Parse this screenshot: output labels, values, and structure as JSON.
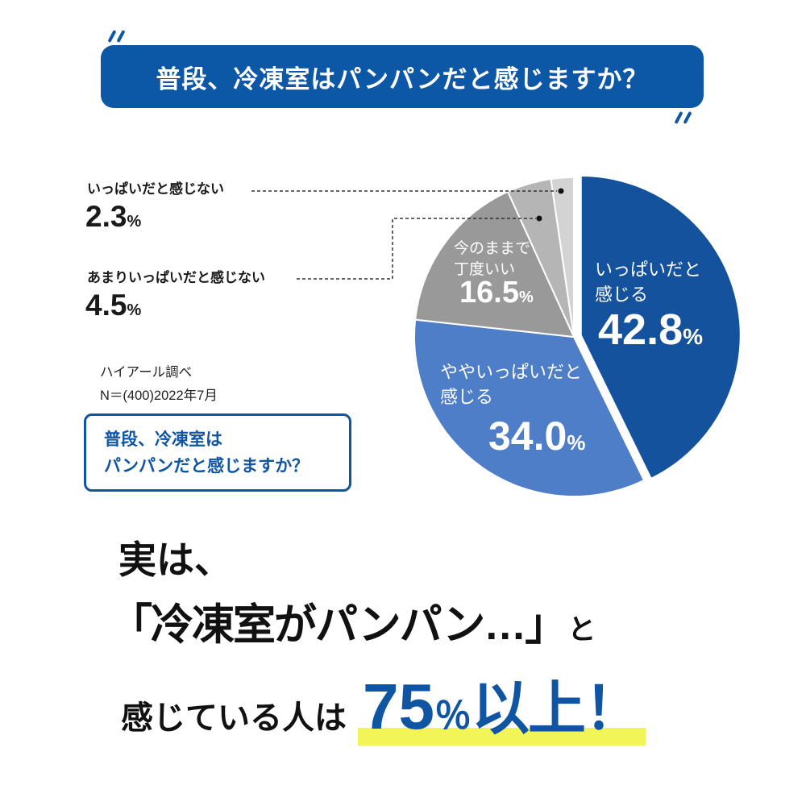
{
  "banner": {
    "title": "普段、冷凍室はパンパンだと感じますか？"
  },
  "chart_data": {
    "type": "pie",
    "title": "普段、冷凍室はパンパンだと感じますか？",
    "source_line1": "ハイアール調べ",
    "source_line2": "N＝(400)2022年7月",
    "direction": "clockwise",
    "start_angle_deg": -90,
    "slices": [
      {
        "label": "いっぱいだと感じる",
        "label_line1": "いっぱいだと",
        "label_line2": "感じる",
        "value": 42.8,
        "display": "42.8",
        "unit": "%",
        "color": "#14529e",
        "exploded": true
      },
      {
        "label": "ややいっぱいだと感じる",
        "label_line1": "ややいっぱいだと",
        "label_line2": "感じる",
        "value": 34.0,
        "display": "34.0",
        "unit": "%",
        "color": "#4e7ec8",
        "exploded": false
      },
      {
        "label": "今のままで丁度いい",
        "label_line1": "今のままで",
        "label_line2": "丁度いい",
        "value": 16.5,
        "display": "16.5",
        "unit": "%",
        "color": "#999999",
        "exploded": false
      },
      {
        "label": "あまりいっぱいだと感じない",
        "value": 4.5,
        "display": "4.5",
        "unit": "%",
        "color": "#b5b5b5",
        "exploded": false
      },
      {
        "label": "いっぱいだと感じない",
        "value": 2.3,
        "display": "2.3",
        "unit": "%",
        "color": "#d3d3d3",
        "exploded": false
      }
    ]
  },
  "question_box": {
    "line1": "普段、冷凍室は",
    "line2": "パンパンだと感じますか？"
  },
  "conclusion": {
    "intro": "実は、",
    "quote": "「冷凍室がパンパン…」",
    "quote_suffix": "と",
    "prefix": "感じている人は",
    "number": "75",
    "percent": "％",
    "rest": "以上！"
  },
  "colors": {
    "banner_blue": "#0d57a7",
    "accent_blue": "#0f55a4",
    "highlight_yellow": "#f1f557"
  }
}
